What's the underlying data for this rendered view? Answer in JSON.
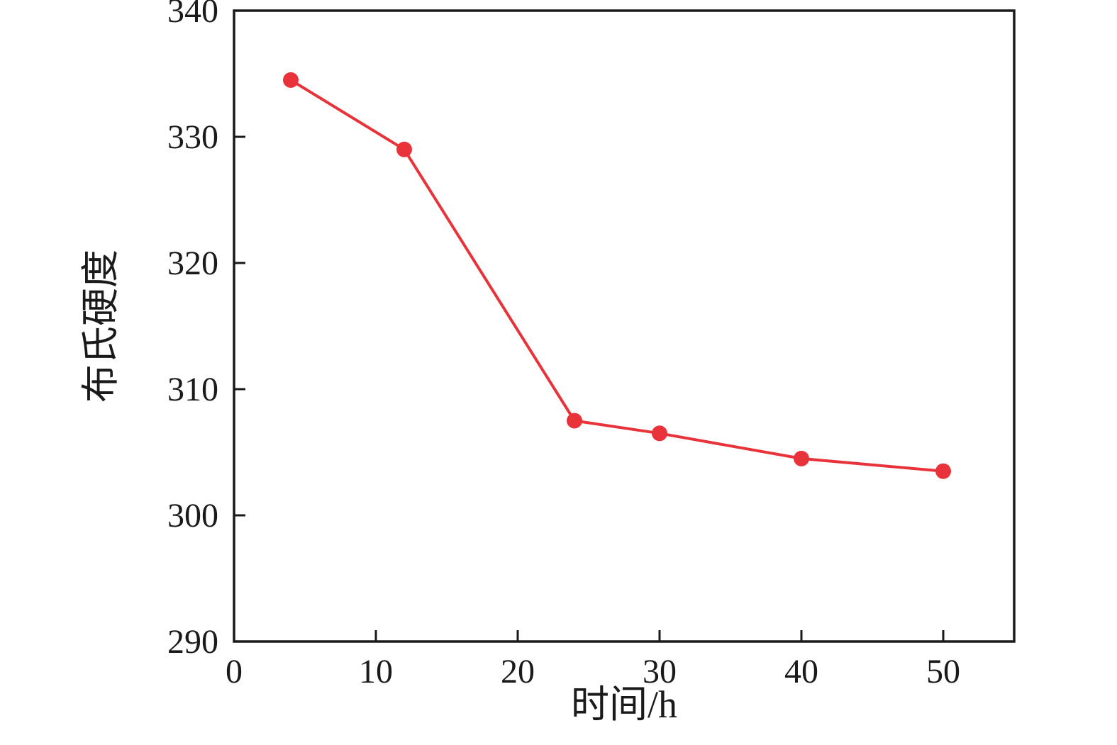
{
  "chart_data": {
    "type": "line",
    "title": "",
    "xlabel": "时间/h",
    "ylabel": "布氏硬度",
    "x": [
      4,
      12,
      24,
      30,
      40,
      50
    ],
    "y": [
      334.5,
      329.0,
      307.5,
      306.5,
      304.5,
      303.5
    ],
    "xlim": [
      0,
      55
    ],
    "ylim": [
      290,
      340
    ],
    "xticks": [
      0,
      10,
      20,
      30,
      40,
      50
    ],
    "yticks": [
      290,
      300,
      310,
      320,
      330,
      340
    ],
    "line_color": "#e8333b",
    "marker": "circle",
    "grid": false,
    "legend": null,
    "axis_color": "#1a1a1a"
  }
}
